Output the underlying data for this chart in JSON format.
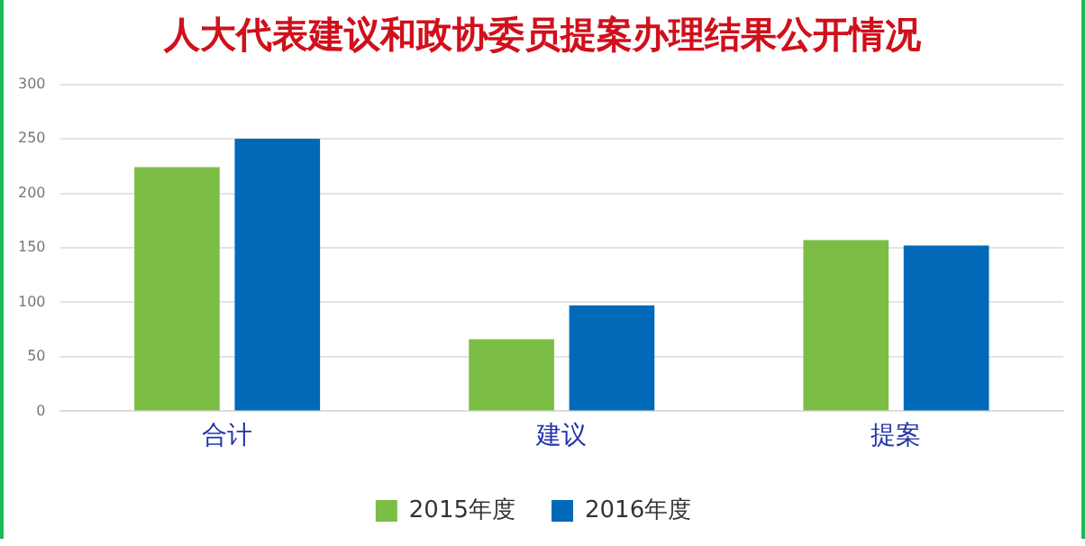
{
  "chart_data": {
    "type": "bar",
    "title": "人大代表建议和政协委员提案办理结果公开情况",
    "categories": [
      "合计",
      "建议",
      "提案"
    ],
    "series": [
      {
        "name": "2015年度",
        "color": "#7cbd45",
        "values": [
          224,
          66,
          157
        ]
      },
      {
        "name": "2016年度",
        "color": "#0069b8",
        "values": [
          250,
          97,
          152
        ]
      }
    ],
    "ylim": [
      0,
      300
    ],
    "yticks": [
      0,
      50,
      100,
      150,
      200,
      250,
      300
    ],
    "grid": "y",
    "legend": "bottom"
  }
}
